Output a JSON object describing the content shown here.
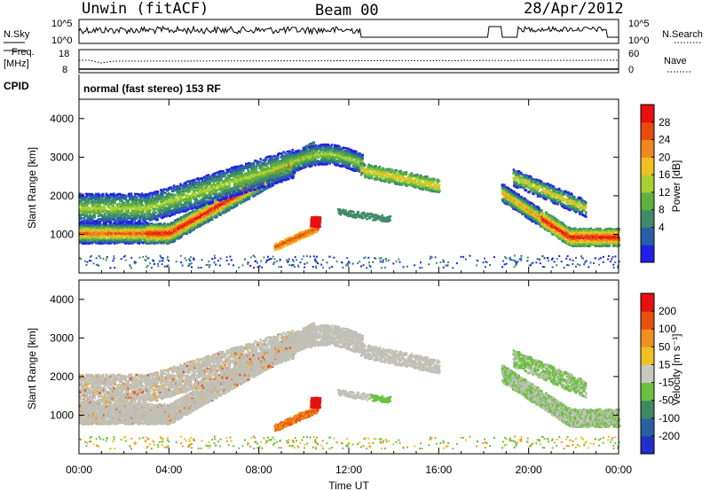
{
  "header": {
    "station": "Unwin (fitACF)",
    "beam": "Beam 00",
    "date": "28/Apr/2012"
  },
  "strip": {
    "nsky_label": "N.Sky",
    "nsearch_label": "N.Search",
    "noise_ticks_left": [
      "10^5",
      "10^0"
    ],
    "noise_ticks_right": [
      "10^5",
      "10^0"
    ],
    "freq_label_1": "Freq.",
    "freq_label_2": "[MHz]",
    "freq_ticks": [
      "18",
      "8"
    ],
    "nave_label": "Nave",
    "nave_ticks": [
      "60",
      "0"
    ],
    "cpid_label": "CPID",
    "cpid_text": "normal (fast stereo) 153 RF"
  },
  "chart_data": [
    {
      "type": "heatmap",
      "panel": "power",
      "ylabel": "Slant Range [km]",
      "ylim": [
        0,
        4500
      ],
      "yticks": [
        "4000",
        "3000",
        "2000",
        "1000"
      ],
      "xlabel": "Time UT",
      "xlim_hours": [
        0,
        24
      ],
      "xticks": [
        "00:00",
        "04:00",
        "08:00",
        "12:00",
        "16:00",
        "20:00",
        "00:00"
      ],
      "colorbar": {
        "label": "Power [dB]",
        "ticks": [
          "28",
          "24",
          "20",
          "16",
          "12",
          "8",
          "4"
        ],
        "colors": [
          "#2020e8",
          "#2a5fa8",
          "#3e8a6a",
          "#5fb040",
          "#a8d030",
          "#f0c020",
          "#f08820",
          "#e84a10",
          "#e81010"
        ]
      }
    },
    {
      "type": "heatmap",
      "panel": "velocity",
      "ylabel": "Slant Range [km]",
      "ylim": [
        0,
        4500
      ],
      "yticks": [
        "4000",
        "3000",
        "2000",
        "1000"
      ],
      "xlabel": "Time UT",
      "xlim_hours": [
        0,
        24
      ],
      "xticks": [
        "00:00",
        "04:00",
        "08:00",
        "12:00",
        "16:00",
        "20:00",
        "00:00"
      ],
      "colorbar": {
        "label": "Velocity [m s⁻¹]",
        "ticks": [
          "200",
          "100",
          "50",
          "15",
          "-15",
          "-50",
          "-100",
          "-200"
        ],
        "colors": [
          "#2030c8",
          "#2a60a0",
          "#3e8a60",
          "#6cc040",
          "#c8c8c0",
          "#f0c020",
          "#f09020",
          "#e85010",
          "#e81010"
        ]
      }
    }
  ],
  "colors": {
    "ground_scatter": "#c0c0b8"
  }
}
